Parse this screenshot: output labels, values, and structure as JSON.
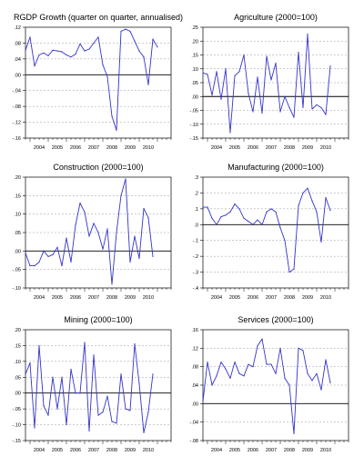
{
  "chart_data": [
    {
      "type": "line",
      "title": "RGDP Growth (quarter on quarter, annualised)",
      "xlabel": "",
      "ylabel": "",
      "ylim": [
        -0.16,
        0.12
      ],
      "yticks": [
        0.12,
        0.08,
        0.04,
        0.0,
        -0.04,
        -0.08,
        -0.12,
        -0.16
      ],
      "ytick_labels": [
        ".12",
        ".08",
        ".04",
        ".00",
        "-.04",
        "-.08",
        "-.12",
        "-.16"
      ],
      "xlim": [
        2003.75,
        2011.75
      ],
      "xticks": [
        "2004",
        "2005",
        "2006",
        "2007",
        "2008",
        "2009",
        "2010"
      ],
      "grid": true,
      "color": "#3333cc",
      "x_start": 2003.75,
      "step": 0.25,
      "values": [
        0.062,
        0.095,
        0.022,
        0.05,
        0.055,
        0.048,
        0.062,
        0.06,
        0.058,
        0.05,
        0.045,
        0.052,
        0.078,
        0.06,
        0.065,
        0.08,
        0.095,
        0.025,
        -0.005,
        -0.105,
        -0.14,
        0.11,
        0.115,
        0.11,
        0.085,
        0.06,
        0.045,
        -0.025,
        0.09,
        0.07
      ]
    },
    {
      "type": "line",
      "title": "Agriculture (2000=100)",
      "xlabel": "",
      "ylabel": "",
      "ylim": [
        -0.15,
        0.25
      ],
      "yticks": [
        0.25,
        0.2,
        0.15,
        0.1,
        0.05,
        0.0,
        -0.05,
        -0.1,
        -0.15
      ],
      "ytick_labels": [
        ".25",
        ".20",
        ".15",
        ".10",
        ".05",
        ".00",
        "-.05",
        "-.10",
        "-.15"
      ],
      "xlim": [
        2003.75,
        2011.75
      ],
      "xticks": [
        "2004",
        "2005",
        "2006",
        "2007",
        "2008",
        "2009",
        "2010"
      ],
      "grid": true,
      "color": "#3333cc",
      "x_start": 2003.75,
      "step": 0.25,
      "values": [
        0.085,
        0.08,
        0.005,
        0.09,
        -0.01,
        0.1,
        -0.13,
        0.075,
        0.09,
        0.15,
        0.01,
        -0.055,
        0.07,
        -0.06,
        0.145,
        0.06,
        0.12,
        -0.055,
        0.0,
        -0.04,
        -0.075,
        0.16,
        -0.04,
        0.225,
        -0.045,
        -0.03,
        -0.04,
        -0.065,
        0.11
      ]
    },
    {
      "type": "line",
      "title": "Construction (2000=100)",
      "xlabel": "",
      "ylabel": "",
      "ylim": [
        -0.1,
        0.2
      ],
      "yticks": [
        0.2,
        0.15,
        0.1,
        0.05,
        0.0,
        -0.05,
        -0.1
      ],
      "ytick_labels": [
        ".20",
        ".15",
        ".10",
        ".05",
        ".00",
        "-.05",
        "-.10"
      ],
      "xlim": [
        2003.75,
        2011.75
      ],
      "xticks": [
        "2004",
        "2005",
        "2006",
        "2007",
        "2008",
        "2009",
        "2010"
      ],
      "grid": true,
      "color": "#3333cc",
      "x_start": 2003.75,
      "step": 0.25,
      "values": [
        -0.005,
        -0.04,
        -0.04,
        -0.03,
        0.0,
        -0.015,
        -0.01,
        0.01,
        -0.04,
        0.035,
        -0.03,
        0.07,
        0.13,
        0.105,
        0.04,
        0.075,
        0.05,
        0.005,
        0.06,
        -0.09,
        0.05,
        0.15,
        0.195,
        -0.03,
        0.04,
        -0.02,
        0.115,
        0.09,
        -0.015
      ]
    },
    {
      "type": "line",
      "title": "Manufacturing (2000=100)",
      "xlabel": "",
      "ylabel": "",
      "ylim": [
        -0.4,
        0.3
      ],
      "yticks": [
        0.3,
        0.2,
        0.1,
        0.0,
        -0.1,
        -0.2,
        -0.3,
        -0.4
      ],
      "ytick_labels": [
        ".3",
        ".2",
        ".1",
        ".0",
        "-.1",
        "-.2",
        "-.3",
        "-.4"
      ],
      "xlim": [
        2003.75,
        2011.75
      ],
      "xticks": [
        "2004",
        "2005",
        "2006",
        "2007",
        "2008",
        "2009",
        "2010"
      ],
      "grid": true,
      "color": "#3333cc",
      "x_start": 2003.75,
      "step": 0.25,
      "values": [
        0.11,
        0.11,
        0.04,
        0.0,
        0.05,
        0.06,
        0.08,
        0.13,
        0.1,
        0.04,
        0.02,
        0.0,
        0.03,
        0.0,
        0.08,
        0.1,
        0.08,
        -0.02,
        -0.1,
        -0.3,
        -0.28,
        0.12,
        0.2,
        0.23,
        0.15,
        0.08,
        -0.11,
        0.17,
        0.09
      ]
    },
    {
      "type": "line",
      "title": "Mining (2000=100)",
      "xlabel": "",
      "ylabel": "",
      "ylim": [
        -0.15,
        0.2
      ],
      "yticks": [
        0.2,
        0.15,
        0.1,
        0.05,
        0.0,
        -0.05,
        -0.1,
        -0.15
      ],
      "ytick_labels": [
        ".20",
        ".15",
        ".10",
        ".05",
        ".00",
        "-.05",
        "-.10",
        "-.15"
      ],
      "xlim": [
        2003.75,
        2011.75
      ],
      "xticks": [
        "2004",
        "2005",
        "2006",
        "2007",
        "2008",
        "2009",
        "2010"
      ],
      "grid": true,
      "color": "#3333cc",
      "x_start": 2003.75,
      "step": 0.25,
      "values": [
        0.06,
        0.095,
        -0.11,
        0.15,
        -0.04,
        -0.07,
        0.05,
        -0.05,
        0.05,
        -0.1,
        0.075,
        0.0,
        0.0,
        0.16,
        -0.12,
        0.12,
        -0.07,
        -0.06,
        -0.01,
        -0.09,
        -0.095,
        0.06,
        -0.05,
        -0.055,
        0.155,
        0.03,
        -0.125,
        -0.06,
        0.06
      ]
    },
    {
      "type": "line",
      "title": "Services (2000=100)",
      "xlabel": "",
      "ylabel": "",
      "ylim": [
        -0.08,
        0.16
      ],
      "yticks": [
        0.16,
        0.12,
        0.08,
        0.04,
        0.0,
        -0.04,
        -0.08
      ],
      "ytick_labels": [
        ".16",
        ".12",
        ".08",
        ".04",
        ".00",
        "-.04",
        "-.08"
      ],
      "xlim": [
        2003.75,
        2011.75
      ],
      "xticks": [
        "2004",
        "2005",
        "2006",
        "2007",
        "2008",
        "2009",
        "2010"
      ],
      "grid": true,
      "color": "#3333cc",
      "x_start": 2003.75,
      "step": 0.25,
      "values": [
        0.005,
        0.09,
        0.04,
        0.06,
        0.09,
        0.075,
        0.055,
        0.09,
        0.065,
        0.06,
        0.085,
        0.08,
        0.125,
        0.14,
        0.085,
        0.085,
        0.065,
        0.12,
        0.055,
        0.04,
        -0.065,
        0.12,
        0.115,
        0.065,
        0.05,
        0.065,
        0.03,
        0.095,
        0.045
      ]
    }
  ]
}
